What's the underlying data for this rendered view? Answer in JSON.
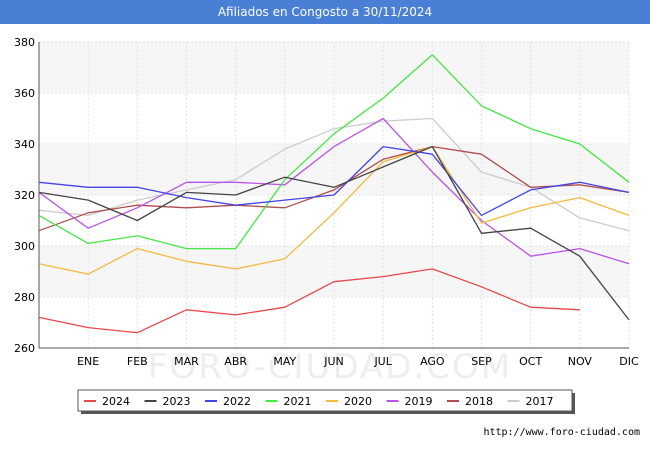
{
  "header": {
    "title": "Afiliados en Congosto a 30/11/2024"
  },
  "watermark": "FORO-CIUDAD.COM",
  "footer": {
    "url": "http://www.foro-ciudad.com"
  },
  "chart_data": {
    "type": "line",
    "title": "Afiliados en Congosto a 30/11/2024",
    "xlabel": "",
    "ylabel": "",
    "categories": [
      "",
      "ENE",
      "FEB",
      "MAR",
      "ABR",
      "MAY",
      "JUN",
      "JUL",
      "AGO",
      "SEP",
      "OCT",
      "NOV",
      "DIC"
    ],
    "ylim": [
      260,
      380
    ],
    "yticks": [
      260,
      280,
      300,
      320,
      340,
      360,
      380
    ],
    "grid": true,
    "legend_position": "bottom",
    "series": [
      {
        "name": "2024",
        "color": "#e8484a",
        "values": [
          272,
          268,
          266,
          275,
          273,
          276,
          286,
          288,
          291,
          284,
          276,
          275,
          null
        ]
      },
      {
        "name": "2023",
        "color": "#444444",
        "values": [
          321,
          318,
          310,
          321,
          320,
          327,
          323,
          331,
          339,
          305,
          307,
          296,
          271
        ]
      },
      {
        "name": "2022",
        "color": "#4444e8",
        "values": [
          325,
          323,
          323,
          319,
          316,
          318,
          320,
          339,
          336,
          312,
          322,
          325,
          321
        ]
      },
      {
        "name": "2021",
        "color": "#44e844",
        "values": [
          312,
          301,
          304,
          299,
          299,
          326,
          344,
          358,
          375,
          355,
          346,
          340,
          325
        ]
      },
      {
        "name": "2020",
        "color": "#f5b840",
        "values": [
          293,
          289,
          299,
          294,
          291,
          295,
          313,
          333,
          339,
          309,
          315,
          319,
          312
        ]
      },
      {
        "name": "2019",
        "color": "#b854e8",
        "values": [
          321,
          307,
          315,
          325,
          325,
          324,
          339,
          350,
          329,
          310,
          296,
          299,
          293
        ]
      },
      {
        "name": "2018",
        "color": "#b04d4d",
        "values": [
          306,
          313,
          316,
          315,
          316,
          315,
          322,
          334,
          339,
          336,
          323,
          324,
          321
        ]
      },
      {
        "name": "2017",
        "color": "#cccccc",
        "values": [
          314,
          312,
          318,
          322,
          326,
          338,
          346,
          349,
          350,
          329,
          323,
          311,
          306
        ]
      }
    ]
  }
}
